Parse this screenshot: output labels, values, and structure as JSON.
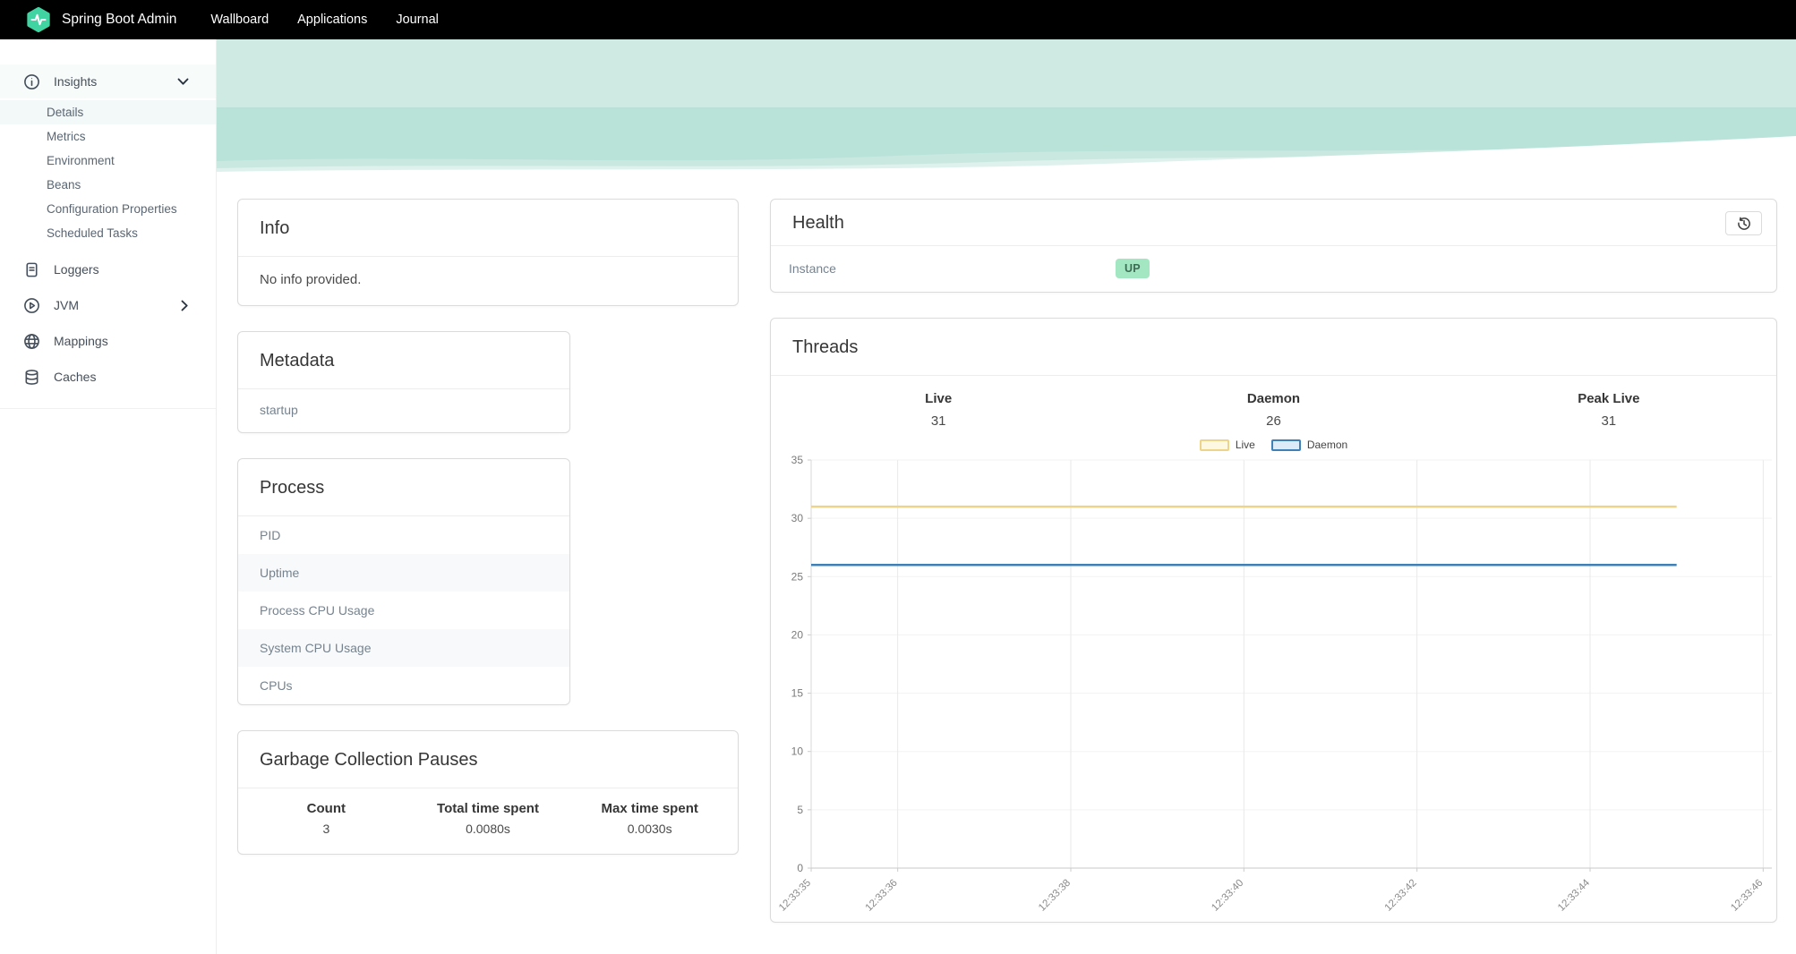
{
  "theme": {
    "navbar_bg": "#000000",
    "brand_green": "#42d3a2",
    "wave_teal_light": "#cfe9e3",
    "wave_teal": "#b9e2d9",
    "status_up_bg": "#a3e7c2",
    "status_up_text": "#3e6b54"
  },
  "navbar": {
    "brand": "Spring Boot Admin",
    "items": [
      "Wallboard",
      "Applications",
      "Journal"
    ]
  },
  "sidebar": {
    "insights": {
      "label": "Insights",
      "children": [
        "Details",
        "Metrics",
        "Environment",
        "Beans",
        "Configuration Properties",
        "Scheduled Tasks"
      ],
      "active": "Details"
    },
    "loggers": {
      "label": "Loggers"
    },
    "jvm": {
      "label": "JVM"
    },
    "mappings": {
      "label": "Mappings"
    },
    "caches": {
      "label": "Caches"
    }
  },
  "cards": {
    "info": {
      "title": "Info",
      "body": "No info provided."
    },
    "metadata": {
      "title": "Metadata",
      "rows": [
        "startup"
      ]
    },
    "process": {
      "title": "Process",
      "rows": [
        "PID",
        "Uptime",
        "Process CPU Usage",
        "System CPU Usage",
        "CPUs"
      ]
    },
    "gc": {
      "title": "Garbage Collection Pauses",
      "columns": [
        {
          "header": "Count",
          "value": "3"
        },
        {
          "header": "Total time spent",
          "value": "0.0080s"
        },
        {
          "header": "Max time spent",
          "value": "0.0030s"
        }
      ]
    },
    "health": {
      "title": "Health",
      "instance_label": "Instance",
      "status": "UP"
    },
    "threads": {
      "title": "Threads",
      "stats": [
        {
          "label": "Live",
          "value": "31"
        },
        {
          "label": "Daemon",
          "value": "26"
        },
        {
          "label": "Peak Live",
          "value": "31"
        }
      ]
    }
  },
  "chart_data": {
    "type": "line",
    "title": "Threads",
    "x_domain": [
      35,
      46.1
    ],
    "x_tick_times": [
      35,
      36,
      38,
      40,
      42,
      44,
      46
    ],
    "x_tick_labels": [
      "12:33:35",
      "12:33:36",
      "12:33:38",
      "12:33:40",
      "12:33:42",
      "12:33:44",
      "12:33:46"
    ],
    "ylim": [
      0,
      35
    ],
    "yticks": [
      0,
      5,
      10,
      15,
      20,
      25,
      30,
      35
    ],
    "grid": true,
    "legend_position": "top-center",
    "series": [
      {
        "name": "Live",
        "value": 31,
        "x_start": 35,
        "x_end": 45,
        "color": "#eed38a",
        "fill": "#fdf8e1"
      },
      {
        "name": "Daemon",
        "value": 26,
        "x_start": 35,
        "x_end": 45,
        "color": "#3f80b7",
        "fill": "#dcebf7"
      }
    ]
  }
}
